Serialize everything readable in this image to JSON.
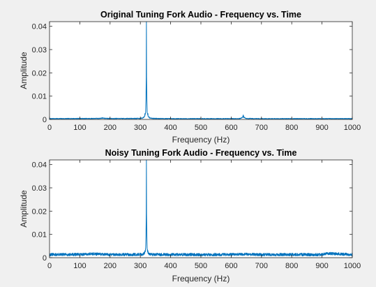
{
  "chart_data": [
    {
      "type": "line",
      "title": "Original Tuning Fork Audio - Frequency vs. Time",
      "xlabel": "Frequency (Hz)",
      "ylabel": "Amplitude",
      "xlim": [
        0,
        1000
      ],
      "ylim": [
        0,
        0.042
      ],
      "xticks": [
        0,
        100,
        200,
        300,
        400,
        500,
        600,
        700,
        800,
        900,
        1000
      ],
      "xtick_labels": [
        "0",
        "100",
        "200",
        "300",
        "400",
        "500",
        "600",
        "700",
        "800",
        "900",
        "1000"
      ],
      "yticks": [
        0,
        0.01,
        0.02,
        0.03,
        0.04
      ],
      "ytick_labels": [
        "0",
        "0.01",
        "0.02",
        "0.03",
        "0.04"
      ],
      "grid": false,
      "color": "#0072bd",
      "noise_floor": 0.0003,
      "series": [
        {
          "x": [
            0,
            100,
            120,
            165,
            175,
            185,
            230,
            300,
            310,
            315,
            318,
            320,
            322,
            325,
            330,
            340,
            400,
            500,
            600,
            630,
            639,
            640,
            641,
            650,
            700,
            800,
            900,
            1000
          ],
          "values": [
            0.0003,
            0.0004,
            0.0004,
            0.0005,
            0.0008,
            0.0005,
            0.0004,
            0.0005,
            0.001,
            0.0025,
            0.006,
            0.042,
            0.006,
            0.0025,
            0.001,
            0.0005,
            0.0003,
            0.0003,
            0.0003,
            0.0004,
            0.0016,
            0.0019,
            0.0015,
            0.0004,
            0.0003,
            0.0003,
            0.0003,
            0.0003
          ]
        }
      ]
    },
    {
      "type": "line",
      "title": "Noisy Tuning Fork Audio - Frequency vs. Time",
      "xlabel": "Frequency (Hz)",
      "ylabel": "Amplitude",
      "xlim": [
        0,
        1000
      ],
      "ylim": [
        0,
        0.042
      ],
      "xticks": [
        0,
        100,
        200,
        300,
        400,
        500,
        600,
        700,
        800,
        900,
        1000
      ],
      "xtick_labels": [
        "0",
        "100",
        "200",
        "300",
        "400",
        "500",
        "600",
        "700",
        "800",
        "900",
        "1000"
      ],
      "yticks": [
        0,
        0.01,
        0.02,
        0.03,
        0.04
      ],
      "ytick_labels": [
        "0",
        "0.01",
        "0.02",
        "0.03",
        "0.04"
      ],
      "grid": false,
      "color": "#0072bd",
      "noise_floor": 0.0012,
      "series": [
        {
          "x": [
            0,
            100,
            140,
            200,
            300,
            310,
            315,
            318,
            320,
            322,
            325,
            330,
            340,
            400,
            500,
            600,
            640,
            700,
            800,
            900,
            915,
            1000
          ],
          "values": [
            0.0013,
            0.0014,
            0.0019,
            0.0013,
            0.0014,
            0.0018,
            0.003,
            0.006,
            0.042,
            0.006,
            0.003,
            0.0018,
            0.0014,
            0.0013,
            0.0013,
            0.0013,
            0.0016,
            0.0013,
            0.0013,
            0.0013,
            0.0022,
            0.0013
          ]
        }
      ]
    }
  ]
}
